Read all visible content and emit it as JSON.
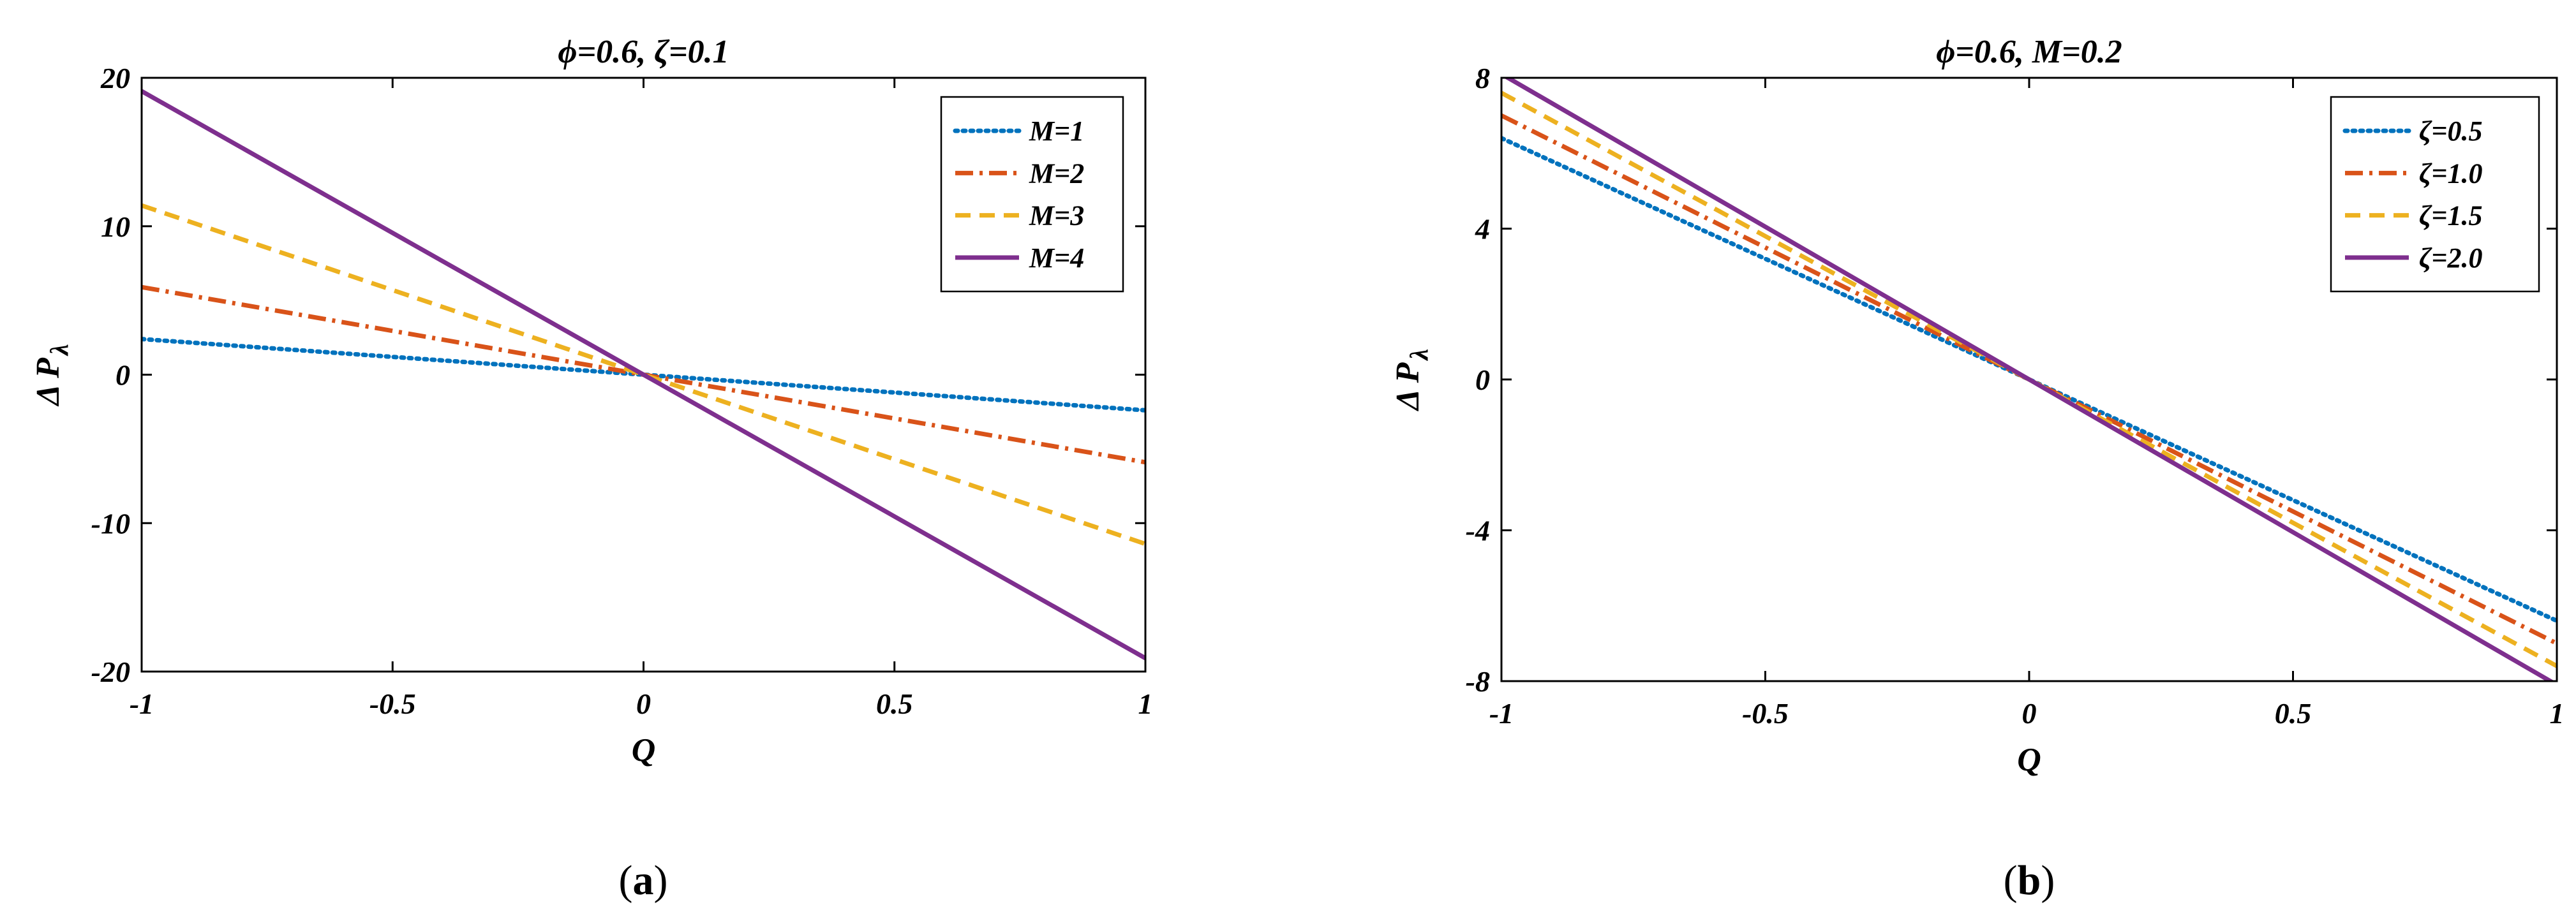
{
  "chart_data": [
    {
      "type": "line",
      "panel_label": "a",
      "title": "ϕ=0.6, ζ=0.1",
      "xlabel": "Q",
      "ylabel_main": "Δ P",
      "ylabel_sub": "λ",
      "xlim": [
        -1,
        1
      ],
      "ylim": [
        -20,
        20
      ],
      "xticks": [
        -1,
        -0.5,
        0,
        0.5,
        1
      ],
      "xtick_labels": [
        "-1",
        "-0.5",
        "0",
        "0.5",
        "1"
      ],
      "yticks": [
        -20,
        -10,
        0,
        10,
        20
      ],
      "ytick_labels": [
        "-20",
        "-10",
        "0",
        "10",
        "20"
      ],
      "legend_position": "top-right",
      "series": [
        {
          "name": "M=1",
          "style": "dotted",
          "color": "#0072BD",
          "x": [
            -1,
            1
          ],
          "y": [
            2.4,
            -2.4
          ]
        },
        {
          "name": "M=2",
          "style": "dashdot",
          "color": "#D95319",
          "x": [
            -1,
            1
          ],
          "y": [
            5.9,
            -5.9
          ]
        },
        {
          "name": "M=3",
          "style": "dashed",
          "color": "#EDB120",
          "x": [
            -1,
            1
          ],
          "y": [
            11.4,
            -11.4
          ]
        },
        {
          "name": "M=4",
          "style": "solid",
          "color": "#7E2F8E",
          "x": [
            -1,
            1
          ],
          "y": [
            19.1,
            -19.1
          ]
        }
      ]
    },
    {
      "type": "line",
      "panel_label": "b",
      "title": "ϕ=0.6, M=0.2",
      "xlabel": "Q",
      "ylabel_main": "Δ P",
      "ylabel_sub": "λ",
      "xlim": [
        -1,
        1
      ],
      "ylim": [
        -8,
        8
      ],
      "xticks": [
        -1,
        -0.5,
        0,
        0.5,
        1
      ],
      "xtick_labels": [
        "-1",
        "-0.5",
        "0",
        "0.5",
        "1"
      ],
      "yticks": [
        -8,
        -4,
        0,
        4,
        8
      ],
      "ytick_labels": [
        "-8",
        "-4",
        "0",
        "4",
        "8"
      ],
      "legend_position": "top-right",
      "series": [
        {
          "name": "ζ=0.5",
          "style": "dotted",
          "color": "#0072BD",
          "x": [
            -1,
            1
          ],
          "y": [
            6.4,
            -6.4
          ]
        },
        {
          "name": "ζ=1.0",
          "style": "dashdot",
          "color": "#D95319",
          "x": [
            -1,
            1
          ],
          "y": [
            7.0,
            -7.0
          ]
        },
        {
          "name": "ζ=1.5",
          "style": "dashed",
          "color": "#EDB120",
          "x": [
            -1,
            1
          ],
          "y": [
            7.6,
            -7.6
          ]
        },
        {
          "name": "ζ=2.0",
          "style": "solid",
          "color": "#7E2F8E",
          "x": [
            -1,
            1
          ],
          "y": [
            8.1,
            -8.1
          ]
        }
      ]
    }
  ]
}
